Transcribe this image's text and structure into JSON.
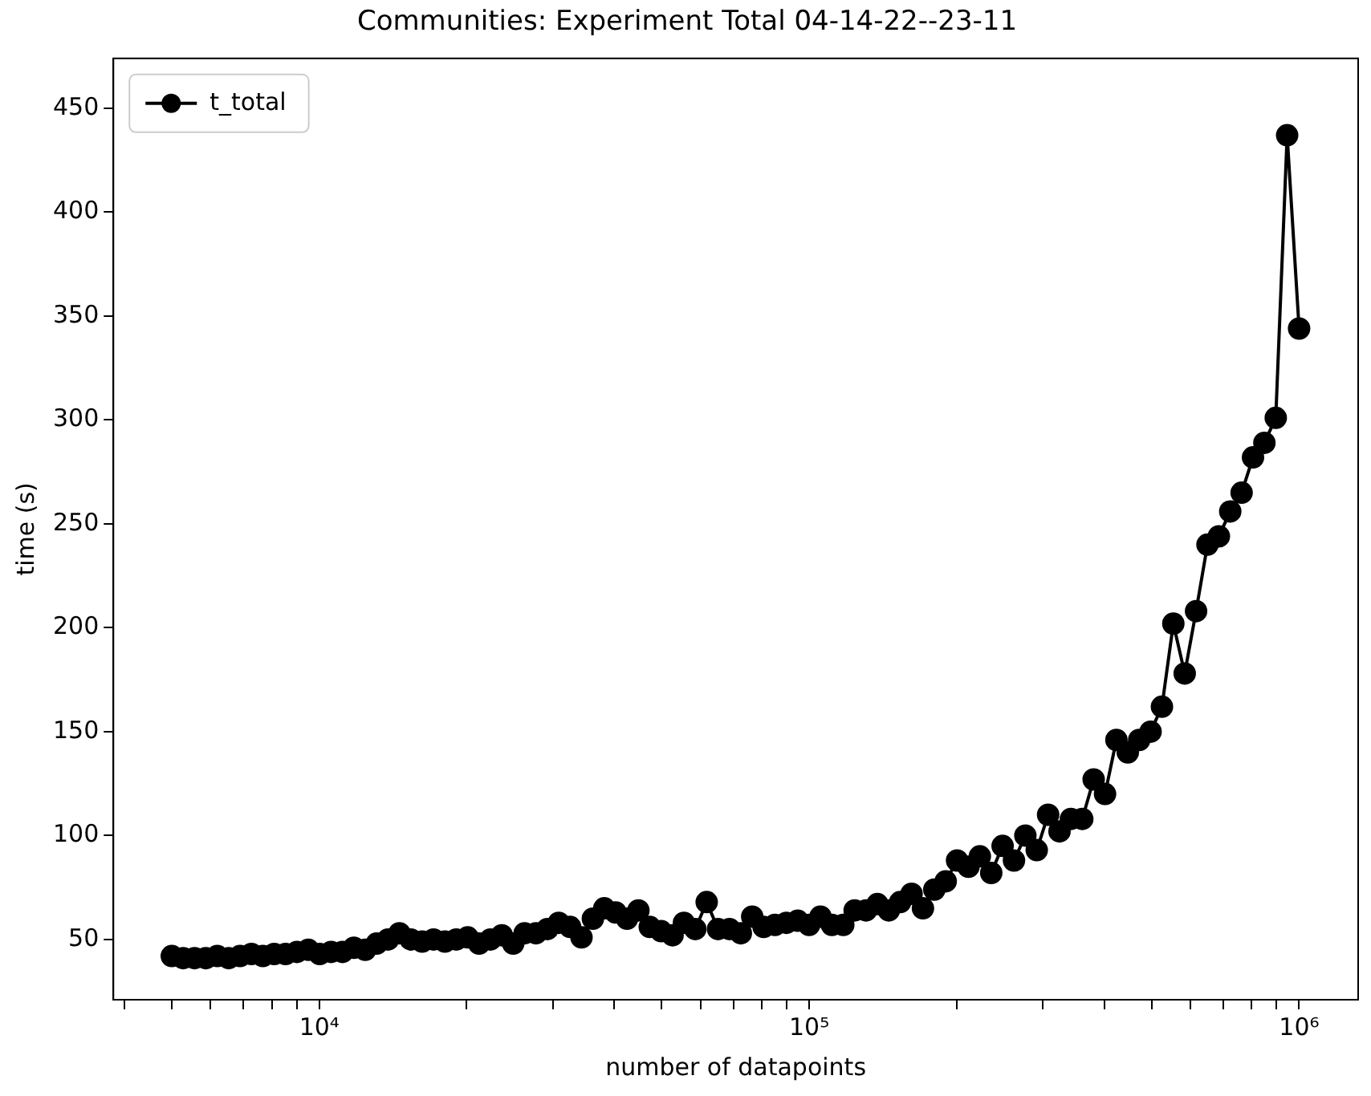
{
  "chart_data": {
    "type": "line",
    "title": "Communities: Experiment Total 04-14-22--23-11",
    "xlabel": "number of datapoints",
    "ylabel": "time (s)",
    "x": [
      5000,
      5275,
      5565,
      5870,
      6193,
      6533,
      6892,
      7271,
      7670,
      8092,
      8536,
      9005,
      9500,
      10022,
      10573,
      11154,
      11767,
      12413,
      13095,
      13815,
      14574,
      15375,
      16220,
      17111,
      18051,
      19043,
      20090,
      21194,
      22358,
      23587,
      24883,
      26250,
      27692,
      29214,
      30819,
      32513,
      34299,
      36184,
      38172,
      40270,
      42482,
      44817,
      47279,
      49877,
      52618,
      55509,
      58559,
      61777,
      65171,
      68752,
      72530,
      76516,
      80720,
      85156,
      89835,
      94771,
      99979,
      105473,
      111268,
      117382,
      123832,
      130637,
      137815,
      145388,
      153377,
      161805,
      170696,
      180075,
      189970,
      200409,
      211421,
      223038,
      235294,
      248223,
      261863,
      276252,
      291432,
      307446,
      324340,
      342162,
      360963,
      380797,
      401721,
      423795,
      447082,
      471648,
      497565,
      524905,
      553748,
      584176,
      616276,
      650139,
      685863,
      723551,
      763309,
      805252,
      849500,
      896179,
      945424,
      1000000
    ],
    "series": [
      {
        "name": "t_total",
        "color": "#000000",
        "values": [
          42,
          41,
          41,
          41,
          42,
          41,
          42,
          43,
          42,
          43,
          43,
          44,
          45,
          43,
          44,
          44,
          46,
          45,
          48,
          50,
          53,
          50,
          49,
          50,
          49,
          50,
          51,
          48,
          50,
          52,
          48,
          53,
          53,
          55,
          58,
          56,
          51,
          60,
          65,
          63,
          60,
          64,
          56,
          54,
          52,
          58,
          55,
          68,
          55,
          55,
          53,
          61,
          56,
          57,
          58,
          59,
          57,
          61,
          57,
          57,
          64,
          64,
          67,
          64,
          68,
          72,
          65,
          74,
          78,
          88,
          85,
          90,
          82,
          95,
          88,
          100,
          93,
          110,
          102,
          108,
          108,
          127,
          120,
          146,
          140,
          146,
          150,
          162,
          202,
          178,
          208,
          240,
          244,
          256,
          265,
          282,
          289,
          301,
          437,
          344
        ]
      }
    ],
    "log": "x",
    "xlim": [
      3800,
      1320000
    ],
    "ylim": [
      21,
      474
    ],
    "xticks": [
      {
        "value": 4000,
        "label": null
      },
      {
        "value": 5000,
        "label": null
      },
      {
        "value": 6000,
        "label": null
      },
      {
        "value": 7000,
        "label": null
      },
      {
        "value": 8000,
        "label": null
      },
      {
        "value": 9000,
        "label": null
      },
      {
        "value": 10000,
        "label": "10⁴"
      },
      {
        "value": 20000,
        "label": null
      },
      {
        "value": 30000,
        "label": null
      },
      {
        "value": 40000,
        "label": null
      },
      {
        "value": 50000,
        "label": null
      },
      {
        "value": 60000,
        "label": null
      },
      {
        "value": 70000,
        "label": null
      },
      {
        "value": 80000,
        "label": null
      },
      {
        "value": 90000,
        "label": null
      },
      {
        "value": 100000,
        "label": "10⁵"
      },
      {
        "value": 200000,
        "label": null
      },
      {
        "value": 300000,
        "label": null
      },
      {
        "value": 400000,
        "label": null
      },
      {
        "value": 500000,
        "label": null
      },
      {
        "value": 600000,
        "label": null
      },
      {
        "value": 700000,
        "label": null
      },
      {
        "value": 800000,
        "label": null
      },
      {
        "value": 900000,
        "label": null
      },
      {
        "value": 1000000,
        "label": "10⁶"
      }
    ],
    "yticks": [
      50,
      100,
      150,
      200,
      250,
      300,
      350,
      400,
      450
    ],
    "grid": false,
    "legend": "top left",
    "marker": "circle",
    "line_style": "solid"
  }
}
